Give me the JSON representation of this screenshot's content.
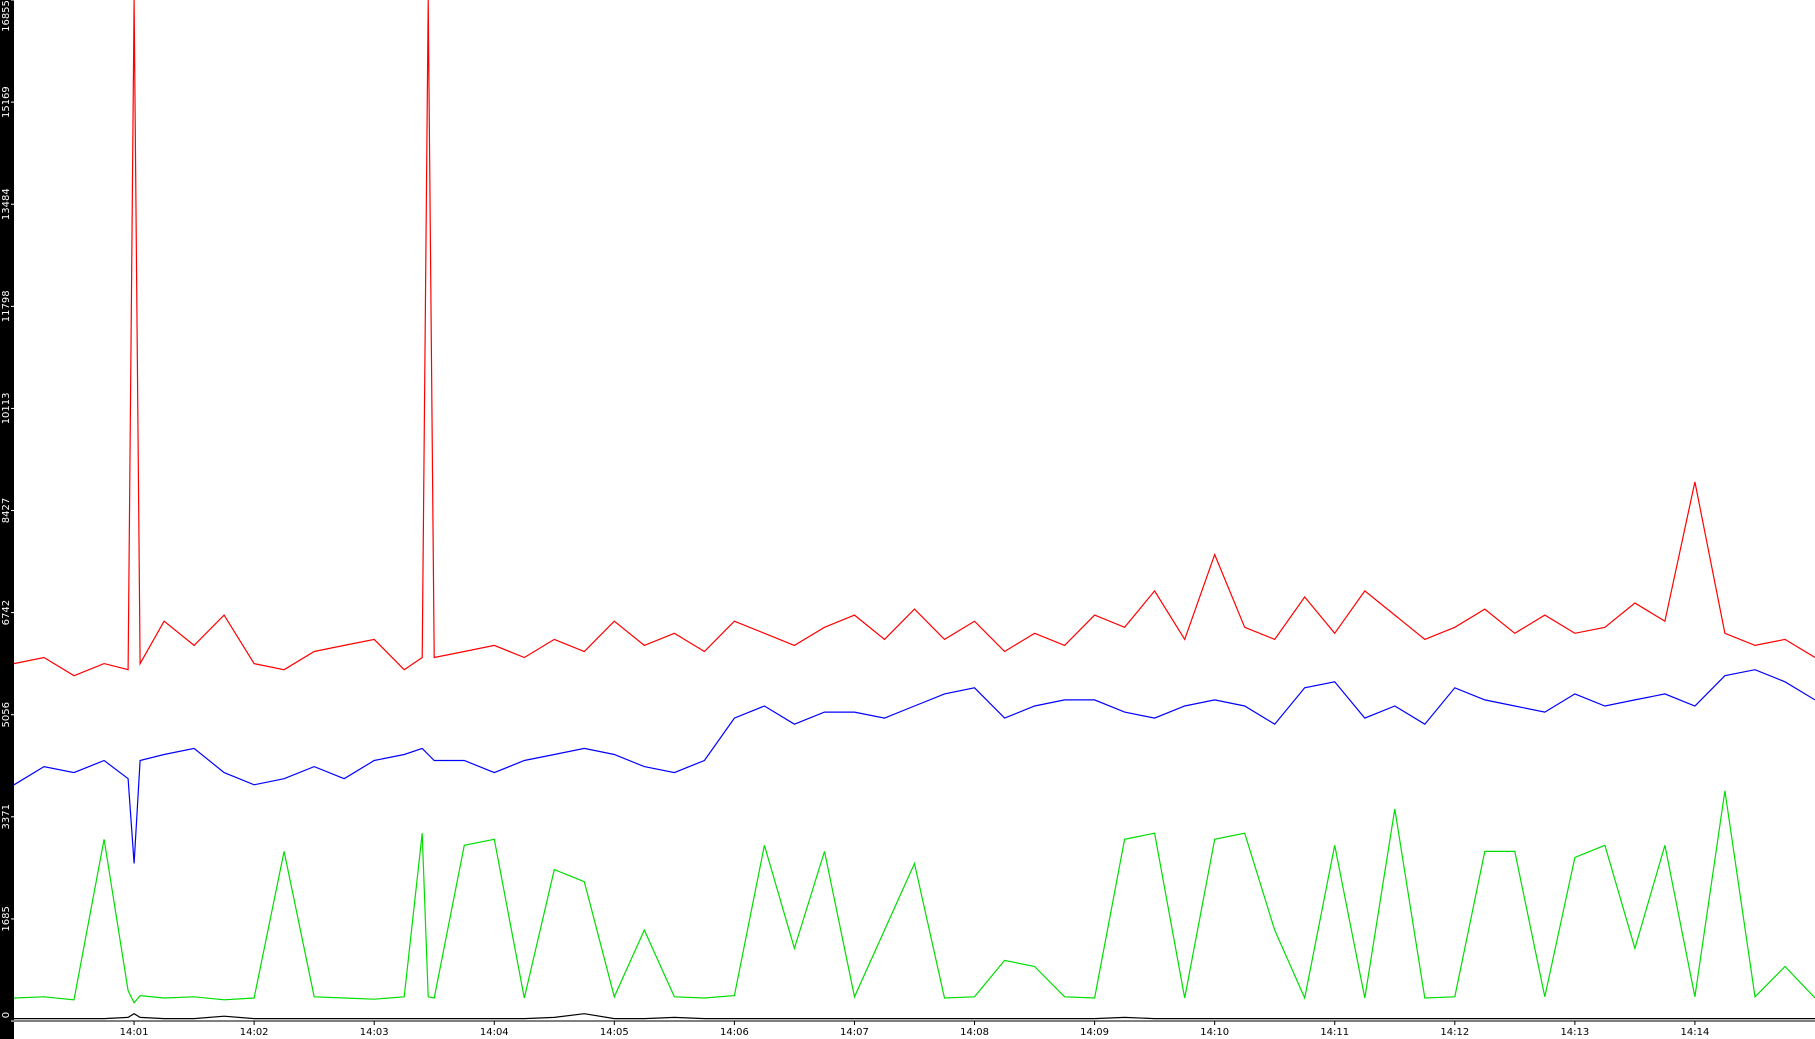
{
  "chart_data": {
    "type": "line",
    "x": [
      0,
      0.25,
      0.5,
      0.75,
      0.95,
      1,
      1.05,
      1.25,
      1.5,
      1.75,
      2,
      2.25,
      2.5,
      2.75,
      3,
      3.25,
      3.4,
      3.45,
      3.5,
      3.75,
      4,
      4.25,
      4.5,
      4.75,
      5,
      5.25,
      5.5,
      5.75,
      6,
      6.25,
      6.5,
      6.75,
      7,
      7.25,
      7.5,
      7.75,
      8,
      8.25,
      8.5,
      8.75,
      9,
      9.25,
      9.5,
      9.75,
      10,
      10.25,
      10.5,
      10.75,
      11,
      11.25,
      11.5,
      11.75,
      12,
      12.25,
      12.5,
      12.75,
      13,
      13.25,
      13.5,
      13.75,
      14,
      14.25,
      14.5,
      14.75,
      15
    ],
    "series": [
      {
        "color": "#ff0000",
        "values": [
          5900,
          6000,
          5700,
          5900,
          5800,
          16855,
          5900,
          6600,
          6200,
          6700,
          5900,
          5800,
          6100,
          6200,
          6300,
          5800,
          6000,
          16855,
          6000,
          6100,
          6200,
          6000,
          6300,
          6100,
          6600,
          6200,
          6400,
          6100,
          6600,
          6400,
          6200,
          6500,
          6700,
          6300,
          6800,
          6300,
          6600,
          6100,
          6400,
          6200,
          6700,
          6500,
          7100,
          6300,
          7700,
          6500,
          6300,
          7000,
          6400,
          7100,
          6700,
          6300,
          6500,
          6800,
          6400,
          6700,
          6400,
          6500,
          6900,
          6600,
          8900,
          6400,
          6200,
          6300,
          6000
        ]
      },
      {
        "color": "#0000ff",
        "values": [
          3900,
          4200,
          4100,
          4300,
          4000,
          2600,
          4300,
          4400,
          4500,
          4100,
          3900,
          4000,
          4200,
          4000,
          4300,
          4400,
          4500,
          4400,
          4300,
          4300,
          4100,
          4300,
          4400,
          4500,
          4400,
          4200,
          4100,
          4300,
          5000,
          5200,
          4900,
          5100,
          5100,
          5000,
          5200,
          5400,
          5500,
          5000,
          5200,
          5300,
          5300,
          5100,
          5000,
          5200,
          5300,
          5200,
          4900,
          5500,
          5600,
          5000,
          5200,
          4900,
          5500,
          5300,
          5200,
          5100,
          5400,
          5200,
          5300,
          5400,
          5200,
          5700,
          5800,
          5600,
          5300
        ]
      },
      {
        "color": "#00dd00",
        "values": [
          380,
          400,
          350,
          3000,
          500,
          300,
          420,
          380,
          400,
          350,
          380,
          2800,
          400,
          380,
          360,
          400,
          3100,
          400,
          380,
          2900,
          3000,
          380,
          2500,
          2300,
          400,
          1500,
          400,
          380,
          420,
          2900,
          1200,
          2800,
          400,
          1500,
          2600,
          380,
          400,
          1000,
          900,
          400,
          380,
          3000,
          3100,
          380,
          3000,
          3100,
          1500,
          380,
          2900,
          380,
          3500,
          380,
          400,
          2800,
          2800,
          400,
          2700,
          2900,
          1200,
          2900,
          400,
          3800,
          400,
          900,
          380
        ]
      },
      {
        "color": "#000000",
        "values": [
          40,
          40,
          40,
          40,
          60,
          120,
          60,
          40,
          40,
          80,
          40,
          40,
          40,
          40,
          40,
          40,
          40,
          40,
          40,
          40,
          40,
          40,
          60,
          120,
          40,
          40,
          60,
          40,
          40,
          40,
          40,
          40,
          40,
          40,
          40,
          40,
          40,
          40,
          40,
          40,
          40,
          60,
          40,
          40,
          40,
          40,
          40,
          40,
          40,
          40,
          40,
          40,
          40,
          40,
          40,
          40,
          40,
          40,
          40,
          40,
          40,
          40,
          40,
          40,
          40
        ]
      }
    ],
    "xlim": [
      0,
      15
    ],
    "xticks": [
      {
        "value": 1,
        "label": "14:01"
      },
      {
        "value": 2,
        "label": "14:02"
      },
      {
        "value": 3,
        "label": "14:03"
      },
      {
        "value": 4,
        "label": "14:04"
      },
      {
        "value": 5,
        "label": "14:05"
      },
      {
        "value": 6,
        "label": "14:06"
      },
      {
        "value": 7,
        "label": "14:07"
      },
      {
        "value": 8,
        "label": "14:08"
      },
      {
        "value": 9,
        "label": "14:09"
      },
      {
        "value": 10,
        "label": "14:10"
      },
      {
        "value": 11,
        "label": "14:11"
      },
      {
        "value": 12,
        "label": "14:12"
      },
      {
        "value": 13,
        "label": "14:13"
      },
      {
        "value": 14,
        "label": "14:14"
      }
    ],
    "ylim": [
      0,
      16855
    ],
    "yticks": [
      0,
      1685,
      3371,
      5056,
      6742,
      8427,
      10113,
      11798,
      13484,
      15169,
      16855
    ]
  }
}
